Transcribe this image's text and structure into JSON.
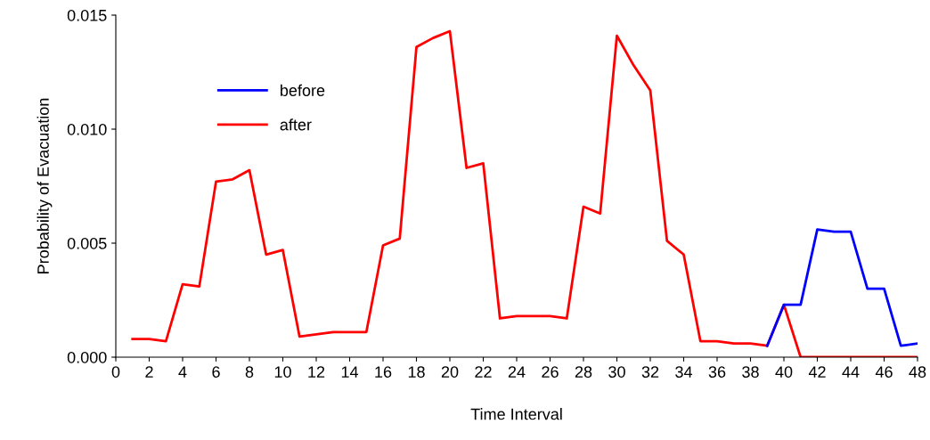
{
  "chart_data": {
    "type": "line",
    "xlabel": "Time Interval",
    "ylabel": "Probability of Evacuation",
    "x": [
      1,
      2,
      3,
      4,
      5,
      6,
      7,
      8,
      9,
      10,
      11,
      12,
      13,
      14,
      15,
      16,
      17,
      18,
      19,
      20,
      21,
      22,
      23,
      24,
      25,
      26,
      27,
      28,
      29,
      30,
      31,
      32,
      33,
      34,
      35,
      36,
      37,
      38,
      39,
      40,
      41,
      42,
      43,
      44,
      45,
      46,
      47,
      48
    ],
    "series": [
      {
        "name": "before",
        "color": "#0000ff",
        "values": [
          null,
          null,
          null,
          null,
          null,
          null,
          null,
          null,
          null,
          null,
          null,
          null,
          null,
          null,
          null,
          null,
          null,
          null,
          null,
          null,
          null,
          null,
          null,
          null,
          null,
          null,
          null,
          null,
          null,
          null,
          null,
          null,
          null,
          null,
          null,
          null,
          null,
          null,
          0.0005,
          0.0023,
          0.0023,
          0.0056,
          0.0055,
          0.0055,
          0.003,
          0.003,
          0.0005,
          0.0006
        ]
      },
      {
        "name": "after",
        "color": "#ff0000",
        "values": [
          0.0008,
          0.0008,
          0.0007,
          0.0032,
          0.0031,
          0.0077,
          0.0078,
          0.0082,
          0.0045,
          0.0047,
          0.0009,
          0.001,
          0.0011,
          0.0011,
          0.0011,
          0.0049,
          0.0052,
          0.0136,
          0.014,
          0.0143,
          0.0083,
          0.0085,
          0.0017,
          0.0018,
          0.0018,
          0.0018,
          0.0017,
          0.0066,
          0.0063,
          0.0141,
          0.0128,
          0.0117,
          0.0051,
          0.0045,
          0.0007,
          0.0007,
          0.0006,
          0.0006,
          0.0005,
          0.0023,
          0,
          0,
          0,
          0,
          0,
          0,
          0,
          0
        ]
      }
    ],
    "xlim": [
      0,
      48
    ],
    "xticks": [
      0,
      2,
      4,
      6,
      8,
      10,
      12,
      14,
      16,
      18,
      20,
      22,
      24,
      26,
      28,
      30,
      32,
      34,
      36,
      38,
      40,
      42,
      44,
      46,
      48
    ],
    "ylim": [
      0,
      0.015
    ],
    "yticks": [
      {
        "value": 0,
        "label": "0.000"
      },
      {
        "value": 0.005,
        "label": "0.005"
      },
      {
        "value": 0.01,
        "label": "0.010"
      },
      {
        "value": 0.015,
        "label": "0.015"
      }
    ],
    "grid": false,
    "legend": "top left",
    "line_style": "solid",
    "marker": "none"
  }
}
